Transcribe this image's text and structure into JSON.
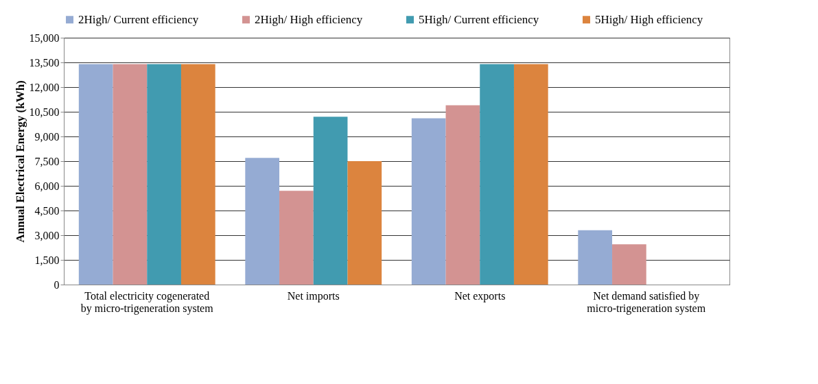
{
  "chart_data": {
    "type": "bar",
    "ylabel": "Annual Electrical Energy (kWh)",
    "categories": [
      "Total electricity cogenerated\nby micro-trigeneration system",
      "Net imports",
      "Net exports",
      "Net demand satisfied by\nmicro-trigeneration system"
    ],
    "series": [
      {
        "name": "2High/ Current efficiency",
        "color": "#95abd3",
        "values": [
          13400,
          7700,
          10100,
          3300
        ]
      },
      {
        "name": "2High/ High efficiency",
        "color": "#d39392",
        "values": [
          13400,
          5700,
          10900,
          2450
        ]
      },
      {
        "name": "5High/ Current efficiency",
        "color": "#419bb0",
        "values": [
          13400,
          10200,
          13400,
          null
        ]
      },
      {
        "name": "5High/ High efficiency",
        "color": "#dc843e",
        "values": [
          13400,
          7500,
          13400,
          null
        ]
      }
    ],
    "ylim": [
      0,
      15000
    ],
    "yticks": [
      {
        "value": 0,
        "label": "0"
      },
      {
        "value": 1500,
        "label": "1,500"
      },
      {
        "value": 3000,
        "label": "3,000"
      },
      {
        "value": 4500,
        "label": "4,500"
      },
      {
        "value": 6000,
        "label": "6,000"
      },
      {
        "value": 7500,
        "label": "7,500"
      },
      {
        "value": 9000,
        "label": "9,000"
      },
      {
        "value": 10500,
        "label": "10,500"
      },
      {
        "value": 12000,
        "label": "12,000"
      },
      {
        "value": 13500,
        "label": "13,500"
      },
      {
        "value": 15000,
        "label": "15,000"
      }
    ],
    "grid": "y",
    "legend": "top"
  }
}
